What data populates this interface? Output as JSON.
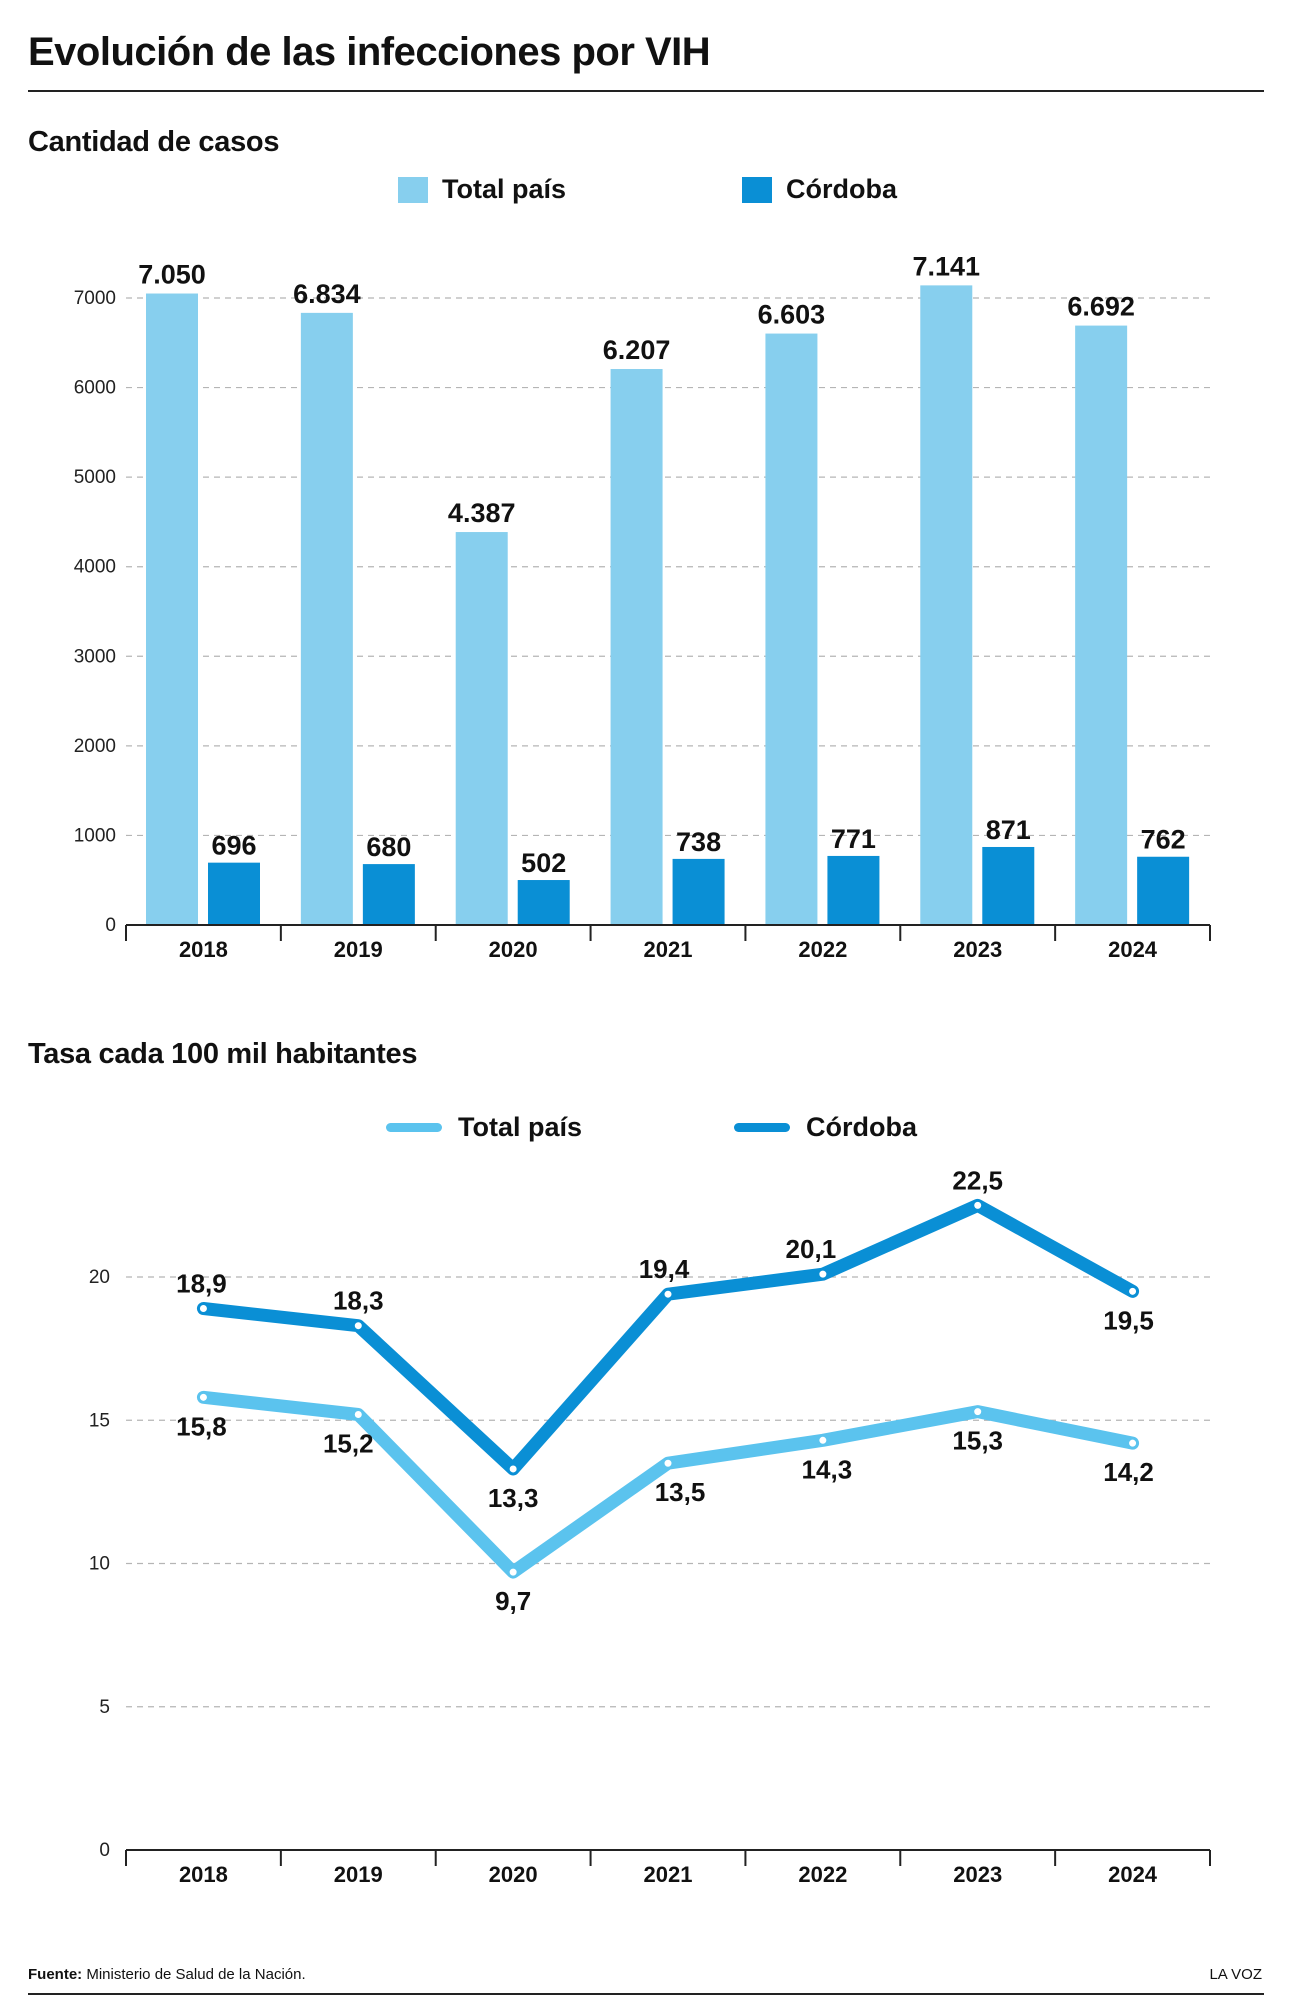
{
  "title": "Evolución de las infecciones por VIH",
  "colors": {
    "total": "#87cfee",
    "cordoba": "#0a8fd5",
    "total_line": "#5bc3ee",
    "cordoba_line": "#0a8fd5"
  },
  "chart_data": [
    {
      "type": "bar",
      "title": "Cantidad de casos",
      "categories": [
        "2018",
        "2019",
        "2020",
        "2021",
        "2022",
        "2023",
        "2024"
      ],
      "series": [
        {
          "name": "Total país",
          "values": [
            7050,
            6834,
            4387,
            6207,
            6603,
            7141,
            6692
          ],
          "labels": [
            "7.050",
            "6.834",
            "4.387",
            "6.207",
            "6.603",
            "7.141",
            "6.692"
          ]
        },
        {
          "name": "Córdoba",
          "values": [
            696,
            680,
            502,
            738,
            771,
            871,
            762
          ],
          "labels": [
            "696",
            "680",
            "502",
            "738",
            "771",
            "871",
            "762"
          ]
        }
      ],
      "yticks": [
        "0",
        "1000",
        "2000",
        "3000",
        "4000",
        "5000",
        "6000",
        "7000"
      ],
      "ylim": [
        0,
        7000
      ],
      "grid": true,
      "legend": "top"
    },
    {
      "type": "line",
      "title": "Tasa cada 100 mil habitantes",
      "categories": [
        "2018",
        "2019",
        "2020",
        "2021",
        "2022",
        "2023",
        "2024"
      ],
      "series": [
        {
          "name": "Total país",
          "values": [
            15.8,
            15.2,
            9.7,
            13.5,
            14.3,
            15.3,
            14.2
          ],
          "labels": [
            "15,8",
            "15,2",
            "9,7",
            "13,5",
            "14,3",
            "15,3",
            "14,2"
          ]
        },
        {
          "name": "Córdoba",
          "values": [
            18.9,
            18.3,
            13.3,
            19.4,
            20.1,
            22.5,
            19.5
          ],
          "labels": [
            "18,9",
            "18,3",
            "13,3",
            "19,4",
            "20,1",
            "22,5",
            "19,5"
          ]
        }
      ],
      "yticks": [
        "0",
        "5",
        "10",
        "15",
        "20"
      ],
      "ylim": [
        0,
        20
      ],
      "grid": true,
      "legend": "top"
    }
  ],
  "footer": {
    "source_label": "Fuente:",
    "source_text": "Ministerio de Salud de la Nación.",
    "brand": "LA VOZ"
  }
}
